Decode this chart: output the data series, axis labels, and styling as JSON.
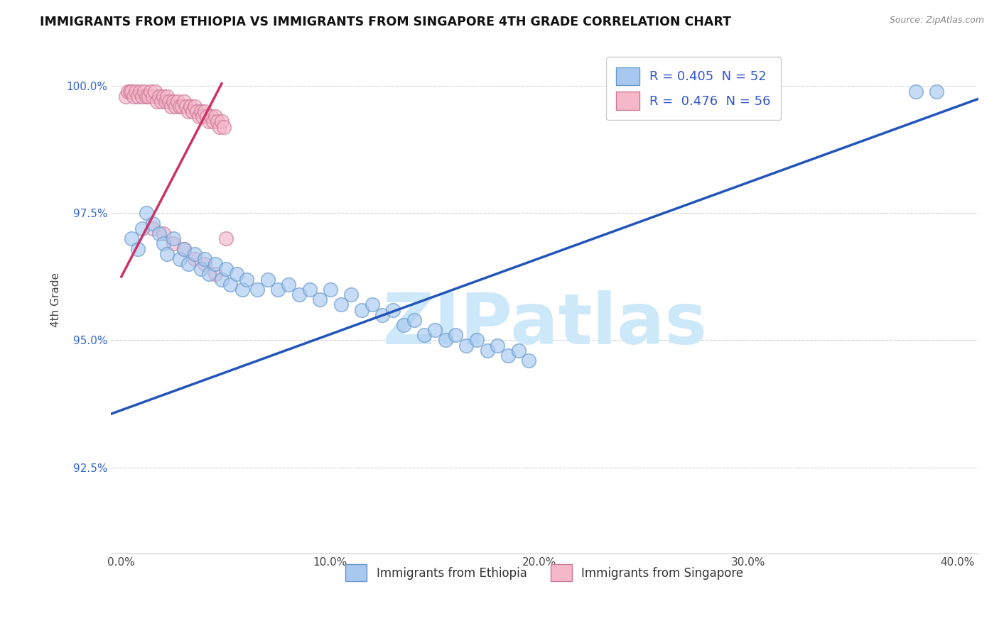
{
  "title": "IMMIGRANTS FROM ETHIOPIA VS IMMIGRANTS FROM SINGAPORE 4TH GRADE CORRELATION CHART",
  "source": "Source: ZipAtlas.com",
  "ylabel": "4th Grade",
  "xlabel_ticks": [
    "0.0%",
    "10.0%",
    "20.0%",
    "30.0%",
    "40.0%"
  ],
  "xlabel_vals": [
    0.0,
    0.1,
    0.2,
    0.3,
    0.4
  ],
  "ylabel_ticks": [
    "92.5%",
    "95.0%",
    "97.5%",
    "100.0%"
  ],
  "ylabel_vals": [
    0.925,
    0.95,
    0.975,
    1.0
  ],
  "xlim": [
    -0.005,
    0.41
  ],
  "ylim": [
    0.908,
    1.008
  ],
  "legend_entries": [
    {
      "label": "R = 0.405  N = 52",
      "color": "#a8c8f0",
      "text_color": "#3355cc"
    },
    {
      "label": "R =  0.476  N = 56",
      "color": "#f5b8c8",
      "text_color": "#3355cc"
    }
  ],
  "watermark": "ZIPatlas",
  "watermark_color": "#cde8f8",
  "ethiopia_color": "#a8c8f0",
  "ethiopia_edge": "#6699cc",
  "singapore_color": "#f5b8c8",
  "singapore_edge": "#cc7799",
  "blue_line_color": "#2255bb",
  "pink_line_color": "#cc3366",
  "ethiopia_points": [
    [
      0.005,
      0.97
    ],
    [
      0.008,
      0.968
    ],
    [
      0.01,
      0.972
    ],
    [
      0.012,
      0.975
    ],
    [
      0.015,
      0.973
    ],
    [
      0.018,
      0.971
    ],
    [
      0.02,
      0.969
    ],
    [
      0.022,
      0.967
    ],
    [
      0.025,
      0.97
    ],
    [
      0.028,
      0.966
    ],
    [
      0.03,
      0.968
    ],
    [
      0.032,
      0.965
    ],
    [
      0.035,
      0.967
    ],
    [
      0.038,
      0.964
    ],
    [
      0.04,
      0.966
    ],
    [
      0.042,
      0.963
    ],
    [
      0.045,
      0.965
    ],
    [
      0.048,
      0.962
    ],
    [
      0.05,
      0.964
    ],
    [
      0.052,
      0.961
    ],
    [
      0.055,
      0.963
    ],
    [
      0.058,
      0.96
    ],
    [
      0.06,
      0.962
    ],
    [
      0.065,
      0.96
    ],
    [
      0.07,
      0.962
    ],
    [
      0.075,
      0.96
    ],
    [
      0.08,
      0.961
    ],
    [
      0.085,
      0.959
    ],
    [
      0.09,
      0.96
    ],
    [
      0.095,
      0.958
    ],
    [
      0.1,
      0.96
    ],
    [
      0.105,
      0.957
    ],
    [
      0.11,
      0.959
    ],
    [
      0.115,
      0.956
    ],
    [
      0.12,
      0.957
    ],
    [
      0.125,
      0.955
    ],
    [
      0.13,
      0.956
    ],
    [
      0.135,
      0.953
    ],
    [
      0.14,
      0.954
    ],
    [
      0.145,
      0.951
    ],
    [
      0.15,
      0.952
    ],
    [
      0.155,
      0.95
    ],
    [
      0.16,
      0.951
    ],
    [
      0.165,
      0.949
    ],
    [
      0.17,
      0.95
    ],
    [
      0.175,
      0.948
    ],
    [
      0.18,
      0.949
    ],
    [
      0.185,
      0.947
    ],
    [
      0.19,
      0.948
    ],
    [
      0.195,
      0.946
    ],
    [
      0.38,
      0.999
    ],
    [
      0.39,
      0.999
    ]
  ],
  "singapore_points": [
    [
      0.002,
      0.998
    ],
    [
      0.003,
      0.999
    ],
    [
      0.004,
      0.999
    ],
    [
      0.005,
      0.999
    ],
    [
      0.006,
      0.998
    ],
    [
      0.007,
      0.999
    ],
    [
      0.008,
      0.998
    ],
    [
      0.009,
      0.999
    ],
    [
      0.01,
      0.998
    ],
    [
      0.011,
      0.999
    ],
    [
      0.012,
      0.998
    ],
    [
      0.013,
      0.998
    ],
    [
      0.014,
      0.999
    ],
    [
      0.015,
      0.998
    ],
    [
      0.016,
      0.999
    ],
    [
      0.017,
      0.997
    ],
    [
      0.018,
      0.998
    ],
    [
      0.019,
      0.997
    ],
    [
      0.02,
      0.998
    ],
    [
      0.021,
      0.997
    ],
    [
      0.022,
      0.998
    ],
    [
      0.023,
      0.997
    ],
    [
      0.024,
      0.996
    ],
    [
      0.025,
      0.997
    ],
    [
      0.026,
      0.996
    ],
    [
      0.027,
      0.997
    ],
    [
      0.028,
      0.996
    ],
    [
      0.029,
      0.996
    ],
    [
      0.03,
      0.997
    ],
    [
      0.031,
      0.996
    ],
    [
      0.032,
      0.995
    ],
    [
      0.033,
      0.996
    ],
    [
      0.034,
      0.995
    ],
    [
      0.035,
      0.996
    ],
    [
      0.036,
      0.995
    ],
    [
      0.037,
      0.994
    ],
    [
      0.038,
      0.995
    ],
    [
      0.039,
      0.994
    ],
    [
      0.04,
      0.995
    ],
    [
      0.041,
      0.994
    ],
    [
      0.042,
      0.993
    ],
    [
      0.043,
      0.994
    ],
    [
      0.044,
      0.993
    ],
    [
      0.045,
      0.994
    ],
    [
      0.046,
      0.993
    ],
    [
      0.047,
      0.992
    ],
    [
      0.048,
      0.993
    ],
    [
      0.049,
      0.992
    ],
    [
      0.05,
      0.97
    ],
    [
      0.015,
      0.972
    ],
    [
      0.025,
      0.969
    ],
    [
      0.03,
      0.968
    ],
    [
      0.035,
      0.966
    ],
    [
      0.04,
      0.965
    ],
    [
      0.045,
      0.963
    ],
    [
      0.02,
      0.971
    ]
  ],
  "blue_line_x": [
    -0.005,
    0.41
  ],
  "blue_line_y": [
    0.9355,
    0.9975
  ],
  "pink_line_x": [
    0.0,
    0.048
  ],
  "pink_line_y": [
    0.9625,
    1.0005
  ]
}
